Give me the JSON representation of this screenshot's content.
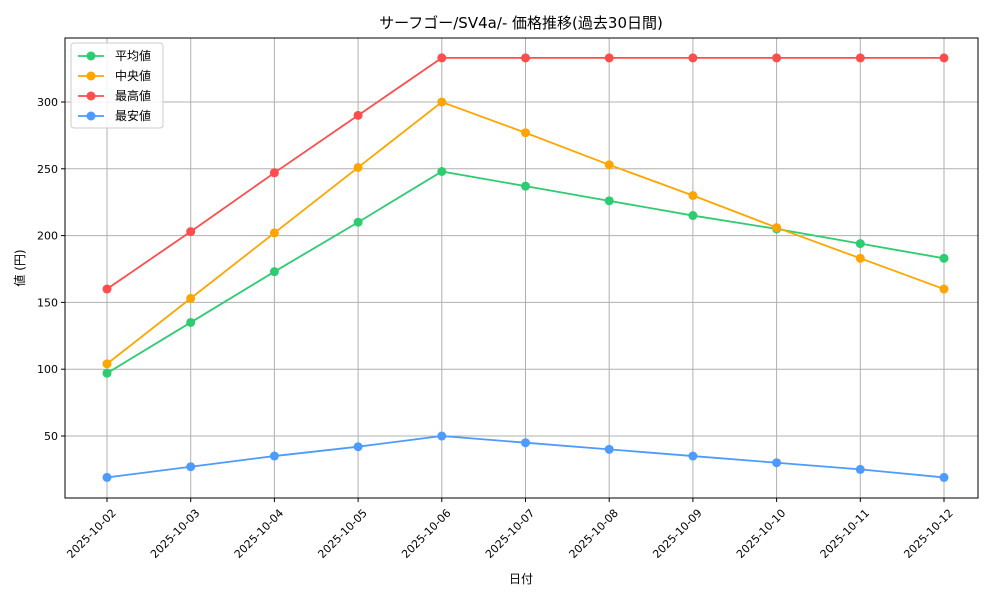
{
  "chart_data": {
    "type": "line",
    "title": "サーフゴー/SV4a/- 価格推移(過去30日間)",
    "xlabel": "日付",
    "ylabel": "値 (円)",
    "x": [
      "2025-10-02",
      "2025-10-03",
      "2025-10-04",
      "2025-10-05",
      "2025-10-06",
      "2025-10-07",
      "2025-10-08",
      "2025-10-09",
      "2025-10-10",
      "2025-10-11",
      "2025-10-12"
    ],
    "ylim": [
      3.6,
      347.9
    ],
    "yticks": [
      50,
      100,
      150,
      200,
      250,
      300
    ],
    "grid": true,
    "legend_position": "top-left",
    "series": [
      {
        "name": "平均値",
        "color": "#2ecc71",
        "values": [
          97,
          135,
          173,
          210,
          248,
          237,
          226,
          215,
          205,
          194,
          183
        ]
      },
      {
        "name": "中央値",
        "color": "#ffa500",
        "values": [
          104,
          153,
          202,
          251,
          300,
          277,
          253,
          230,
          206,
          183,
          160
        ]
      },
      {
        "name": "最高値",
        "color": "#ff4d4d",
        "values": [
          160,
          203,
          247,
          290,
          333,
          333,
          333,
          333,
          333,
          333,
          333
        ]
      },
      {
        "name": "最安値",
        "color": "#4d9bff",
        "values": [
          19,
          27,
          35,
          42,
          50,
          45,
          40,
          35,
          30,
          25,
          19
        ]
      }
    ]
  }
}
